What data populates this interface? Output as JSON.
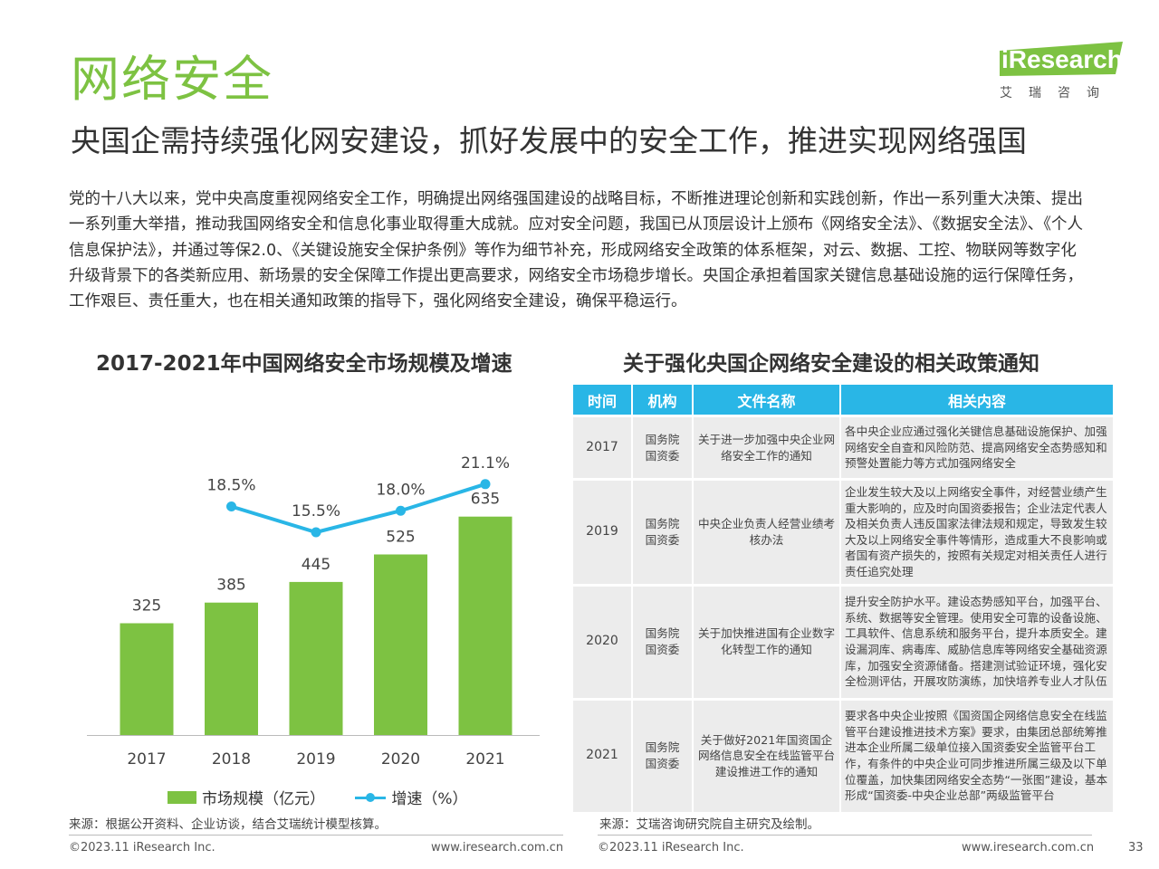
{
  "header": {
    "title": "网络安全",
    "subtitle": "央国企需持续强化网安建设，抓好发展中的安全工作，推进实现网络强国",
    "logo_text": "iResearch",
    "logo_sub": "艾瑞咨询"
  },
  "intro": "党的十八大以来，党中央高度重视网络安全工作，明确提出网络强国建设的战略目标，不断推进理论创新和实践创新，作出一系列重大决策、提出一系列重大举措，推动我国网络安全和信息化事业取得重大成就。应对安全问题，我国已从顶层设计上颁布《网络安全法》、《数据安全法》、《个人信息保护法》，并通过等保2.0、《关键设施安全保护条例》等作为细节补充，形成网络安全政策的体系框架，对云、数据、工控、物联网等数字化升级背景下的各类新应用、新场景的安全保障工作提出更高要求，网络安全市场稳步增长。央国企承担着国家关键信息基础设施的运行保障任务，工作艰巨、责任重大，也在相关通知政策的指导下，强化网络安全建设，确保平稳运行。",
  "chart_title": "2017-2021年中国网络安全市场规模及增速",
  "chart_data": {
    "type": "bar",
    "categories": [
      "2017",
      "2018",
      "2019",
      "2020",
      "2021"
    ],
    "series": [
      {
        "name": "市场规模（亿元）",
        "type": "bar",
        "values": [
          325,
          385,
          445,
          525,
          635
        ],
        "labels": [
          "325",
          "385",
          "445",
          "525",
          "635"
        ],
        "color": "#7dc242"
      },
      {
        "name": "增速（%）",
        "type": "line",
        "x": [
          "2018",
          "2019",
          "2020",
          "2021"
        ],
        "values": [
          18.5,
          15.5,
          18.0,
          21.1
        ],
        "labels": [
          "18.5%",
          "15.5%",
          "18.0%",
          "21.1%"
        ],
        "color": "#29b6e6"
      }
    ],
    "xlabel": "",
    "ylabel": ""
  },
  "table_title": "关于强化央国企网络安全建设的相关政策通知",
  "table": {
    "headers": [
      "时间",
      "机构",
      "文件名称",
      "相关内容"
    ],
    "header_color": "#29b6e6",
    "rows": [
      {
        "year": "2017",
        "org": "国务院\n国资委",
        "doc": "关于进一步加强中央企业网络安全工作的通知",
        "content": "各中央企业应通过强化关键信息基础设施保护、加强网络安全自查和风险防范、提高网络安全态势感知和预警处置能力等方式加强网络安全"
      },
      {
        "year": "2019",
        "org": "国务院\n国资委",
        "doc": "中央企业负责人经营业绩考核办法",
        "content": "企业发生较大及以上网络安全事件，对经营业绩产生重大影响的，应及时向国资委报告；企业法定代表人及相关负责人违反国家法律法规和规定，导致发生较大及以上网络安全事件等情形，造成重大不良影响或者国有资产损失的，按照有关规定对相关责任人进行责任追究处理"
      },
      {
        "year": "2020",
        "org": "国务院\n国资委",
        "doc": "关于加快推进国有企业数字化转型工作的通知",
        "content": "提升安全防护水平。建设态势感知平台，加强平台、系统、数据等安全管理。使用安全可靠的设备设施、工具软件、信息系统和服务平台，提升本质安全。建设漏洞库、病毒库、威胁信息库等网络安全基础资源库，加强安全资源储备。搭建测试验证环境，强化安全检测评估，开展攻防演练，加快培养专业人才队伍"
      },
      {
        "year": "2021",
        "org": "国务院\n国资委",
        "doc": "关于做好2021年国资国企网络信息安全在线监管平台建设推进工作的通知",
        "content": "要求各中央企业按照《国资国企网络信息安全在线监管平台建设推进技术方案》要求，由集团总部统筹推进本企业所属二级单位接入国资委安全监管平台工作，有条件的中央企业可同步推进所属三级及以下单位覆盖，加快集团网络安全态势“一张图”建设，基本形成“国资委-中央企业总部”两级监管平台"
      }
    ]
  },
  "source_left": "来源：根据公开资料、企业访谈，结合艾瑞统计模型核算。",
  "source_right": "来源：艾瑞咨询研究院自主研究及绘制。",
  "footer": {
    "copyright": "©2023.11 iResearch Inc.",
    "url": "www.iresearch.com.cn",
    "page": "33"
  }
}
